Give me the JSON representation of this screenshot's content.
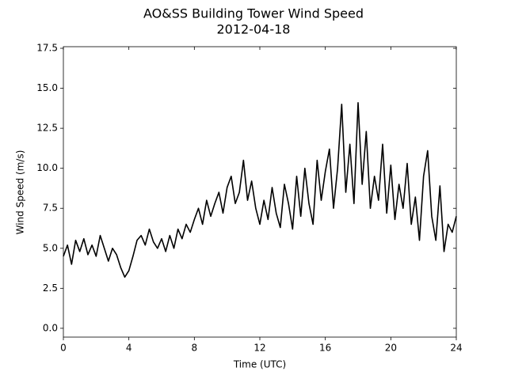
{
  "chart_data": {
    "type": "line",
    "title": "AO&SS Building Tower Wind Speed",
    "subtitle": "2012-04-18",
    "xlabel": "Time (UTC)",
    "ylabel": "Wind Speed (m/s)",
    "xlim": [
      0,
      24
    ],
    "ylim": [
      -0.55,
      17.6
    ],
    "xticks": [
      0,
      4,
      8,
      12,
      16,
      20,
      24
    ],
    "yticks": [
      {
        "value": 0,
        "label": "0.0"
      },
      {
        "value": 2.5,
        "label": "2.5"
      },
      {
        "value": 5,
        "label": "5.0"
      },
      {
        "value": 7.5,
        "label": "7.5"
      },
      {
        "value": 10,
        "label": "10.0"
      },
      {
        "value": 12.5,
        "label": "12.5"
      },
      {
        "value": 15,
        "label": "15.0"
      },
      {
        "value": 17.5,
        "label": "17.5"
      }
    ],
    "series": [
      {
        "color": "#000000",
        "x": [
          0,
          0.25,
          0.5,
          0.75,
          1,
          1.25,
          1.5,
          1.75,
          2,
          2.25,
          2.5,
          2.75,
          3,
          3.25,
          3.5,
          3.75,
          4,
          4.25,
          4.5,
          4.75,
          5,
          5.25,
          5.5,
          5.75,
          6,
          6.25,
          6.5,
          6.75,
          7,
          7.25,
          7.5,
          7.75,
          8,
          8.25,
          8.5,
          8.75,
          9,
          9.25,
          9.5,
          9.75,
          10,
          10.25,
          10.5,
          10.75,
          11,
          11.25,
          11.5,
          11.75,
          12,
          12.25,
          12.5,
          12.75,
          13,
          13.25,
          13.5,
          13.75,
          14,
          14.25,
          14.5,
          14.75,
          15,
          15.25,
          15.5,
          15.75,
          16,
          16.25,
          16.5,
          16.75,
          17,
          17.25,
          17.5,
          17.75,
          18,
          18.25,
          18.5,
          18.75,
          19,
          19.25,
          19.5,
          19.75,
          20,
          20.25,
          20.5,
          20.75,
          21,
          21.25,
          21.5,
          21.75,
          22,
          22.25,
          22.5,
          22.75,
          23,
          23.25,
          23.5,
          23.75,
          24
        ],
        "values": [
          4.5,
          5.2,
          4.0,
          5.5,
          4.8,
          5.6,
          4.6,
          5.2,
          4.5,
          5.8,
          5.0,
          4.2,
          5.0,
          4.6,
          3.8,
          3.2,
          3.6,
          4.5,
          5.5,
          5.8,
          5.2,
          6.2,
          5.4,
          5.0,
          5.6,
          4.8,
          5.8,
          5.0,
          6.2,
          5.6,
          6.5,
          6.0,
          6.8,
          7.5,
          6.5,
          8.0,
          7.0,
          7.8,
          8.5,
          7.2,
          8.8,
          9.5,
          7.8,
          8.5,
          10.5,
          8.0,
          9.2,
          7.5,
          6.5,
          8.0,
          6.8,
          8.8,
          7.2,
          6.3,
          9.0,
          7.8,
          6.2,
          9.5,
          7.0,
          10.0,
          7.8,
          6.5,
          10.5,
          8.0,
          9.8,
          11.2,
          7.5,
          10.0,
          14.0,
          8.5,
          11.5,
          7.8,
          14.1,
          9.0,
          12.3,
          7.5,
          9.5,
          8.0,
          11.5,
          7.2,
          10.2,
          6.8,
          9.0,
          7.5,
          10.3,
          6.5,
          8.2,
          5.5,
          9.5,
          11.1,
          7.0,
          5.5,
          8.9,
          4.8,
          6.5,
          6.0,
          7.0
        ]
      }
    ]
  }
}
